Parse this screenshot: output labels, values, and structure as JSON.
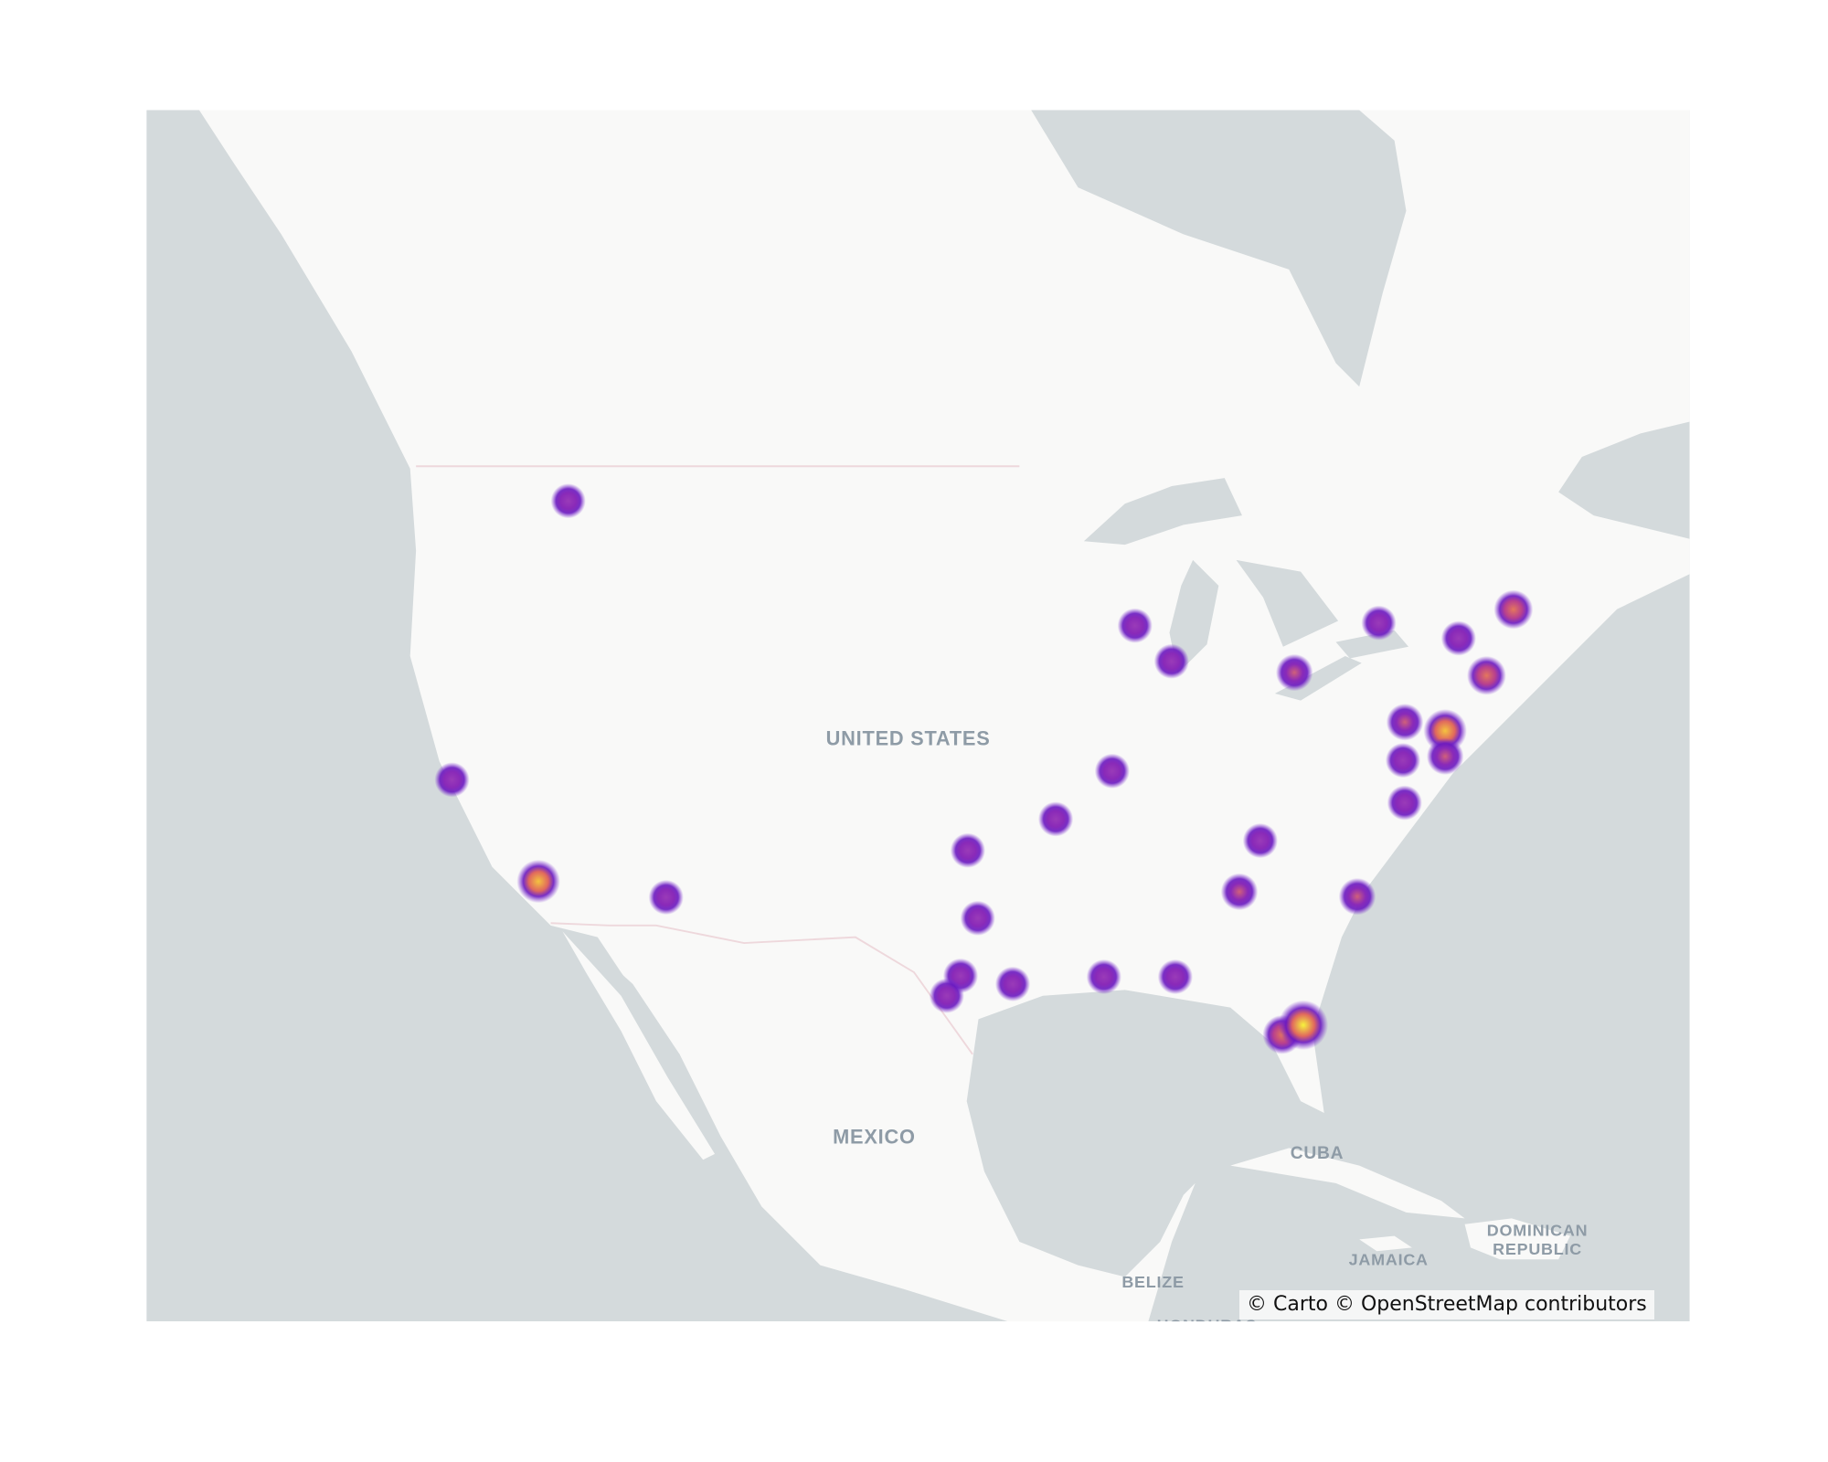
{
  "chart_data": {
    "type": "heatmap",
    "basemap": "carto-positron",
    "colorscale": "plasma",
    "colors": {
      "water": "#d4dadc",
      "land": "#f9f9f8",
      "border": "#eed8dc",
      "label": "#8e9ba6"
    },
    "points": [
      {
        "lat": 47.05,
        "lon": -116.8,
        "weight": 1
      },
      {
        "lat": 37.77,
        "lon": -122.42,
        "weight": 1
      },
      {
        "lat": 34.05,
        "lon": -118.24,
        "weight": 5
      },
      {
        "lat": 33.45,
        "lon": -112.07,
        "weight": 1
      },
      {
        "lat": 43.07,
        "lon": -89.4,
        "weight": 1
      },
      {
        "lat": 41.88,
        "lon": -87.63,
        "weight": 1
      },
      {
        "lat": 41.5,
        "lon": -81.69,
        "weight": 2
      },
      {
        "lat": 43.16,
        "lon": -77.61,
        "weight": 1
      },
      {
        "lat": 42.65,
        "lon": -73.75,
        "weight": 1
      },
      {
        "lat": 43.6,
        "lon": -71.1,
        "weight": 3
      },
      {
        "lat": 41.4,
        "lon": -72.4,
        "weight": 3
      },
      {
        "lat": 39.8,
        "lon": -76.35,
        "weight": 2
      },
      {
        "lat": 39.5,
        "lon": -74.4,
        "weight": 5
      },
      {
        "lat": 38.46,
        "lon": -76.44,
        "weight": 1
      },
      {
        "lat": 38.6,
        "lon": -74.4,
        "weight": 2
      },
      {
        "lat": 36.94,
        "lon": -76.36,
        "weight": 1
      },
      {
        "lat": 38.08,
        "lon": -90.5,
        "weight": 1
      },
      {
        "lat": 36.35,
        "lon": -93.23,
        "weight": 1
      },
      {
        "lat": 35.2,
        "lon": -97.48,
        "weight": 1
      },
      {
        "lat": 32.66,
        "lon": -97.0,
        "weight": 1
      },
      {
        "lat": 30.44,
        "lon": -97.83,
        "weight": 1
      },
      {
        "lat": 29.66,
        "lon": -98.5,
        "weight": 1
      },
      {
        "lat": 30.12,
        "lon": -95.31,
        "weight": 1
      },
      {
        "lat": 30.4,
        "lon": -90.9,
        "weight": 1
      },
      {
        "lat": 30.4,
        "lon": -87.45,
        "weight": 1
      },
      {
        "lat": 35.56,
        "lon": -83.34,
        "weight": 1
      },
      {
        "lat": 33.66,
        "lon": -84.35,
        "weight": 2
      },
      {
        "lat": 33.48,
        "lon": -78.65,
        "weight": 2
      },
      {
        "lat": 28.12,
        "lon": -82.28,
        "weight": 3
      },
      {
        "lat": 28.5,
        "lon": -81.26,
        "weight": 8
      }
    ]
  },
  "labels": {
    "united_states": "UNITED STATES",
    "mexico": "MEXICO",
    "cuba": "CUBA",
    "jamaica": "JAMAICA",
    "dominican_1": "DOMINICAN",
    "dominican_2": "REPUBLIC",
    "belize": "BELIZE",
    "honduras": "HONDURAS"
  },
  "attribution": "© Carto © OpenStreetMap contributors"
}
